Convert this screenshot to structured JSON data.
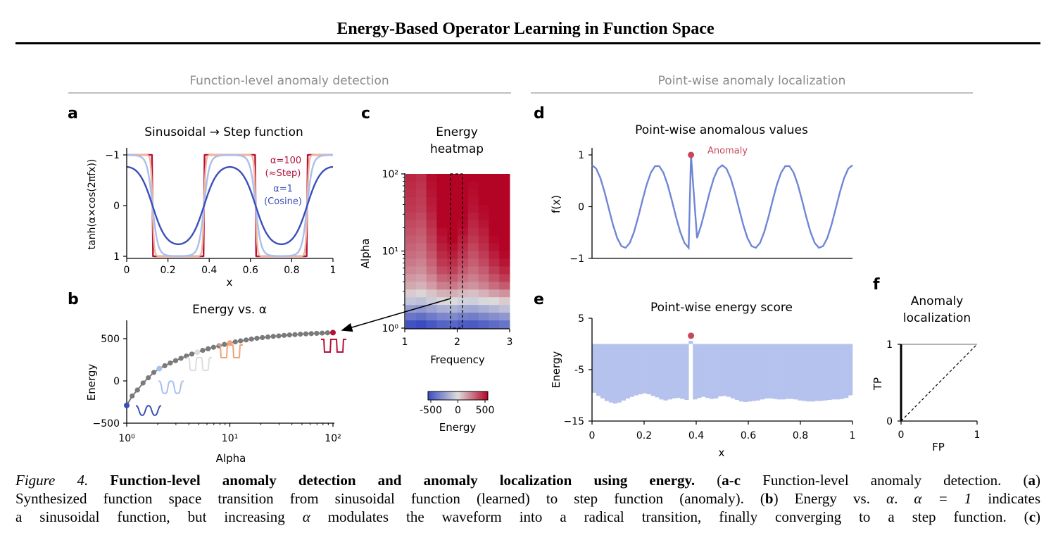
{
  "page": {
    "running_title": "Energy-Based Operator Learning in Function Space"
  },
  "figure": {
    "section_left": "Function-level anomaly detection",
    "section_right": "Point-wise anomaly localization",
    "panels": {
      "a": {
        "letter": "a",
        "title": "Sinusoidal → Step function",
        "xlabel": "x",
        "ylabel": "tanh(α×cos(2πfx))",
        "xticks": [
          "0",
          "0.2",
          "0.4",
          "0.6",
          "0.8",
          "1"
        ],
        "yticks": [
          "−1",
          "0",
          "1"
        ],
        "annotation_step_1": "α=100",
        "annotation_step_2": "(≈Step)",
        "annotation_cos_1": "α=1",
        "annotation_cos_2": "(Cosine)"
      },
      "b": {
        "letter": "b",
        "title": "Energy vs. α",
        "xlabel": "Alpha",
        "ylabel": "Energy",
        "xticks": [
          "10⁰",
          "10¹",
          "10²"
        ],
        "yticks": [
          "500",
          "0",
          "−500"
        ]
      },
      "c": {
        "letter": "c",
        "title_1": "Energy",
        "title_2": "heatmap",
        "xlabel": "Frequency",
        "ylabel": "Alpha",
        "xticks": [
          "1",
          "2",
          "3"
        ],
        "yticks": [
          "10²",
          "10¹",
          "10⁰"
        ],
        "colorbar_label": "Energy",
        "colorbar_ticks": [
          "-500",
          "0",
          "500"
        ]
      },
      "d": {
        "letter": "d",
        "title": "Point-wise anomalous values",
        "ylabel": "f(x)",
        "yticks": [
          "1",
          "0",
          "−1"
        ],
        "annotation": "Anomaly"
      },
      "e": {
        "letter": "e",
        "title": "Point-wise energy score",
        "xlabel": "x",
        "ylabel": "Energy",
        "xticks": [
          "0",
          "0.2",
          "0.4",
          "0.6",
          "0.8",
          "1"
        ],
        "yticks": [
          "5",
          "-5",
          "−15"
        ]
      },
      "f": {
        "letter": "f",
        "title_1": "Anomaly",
        "title_2": "localization",
        "xlabel": "FP",
        "ylabel": "TP",
        "xticks": [
          "0",
          "1"
        ],
        "yticks": [
          "1",
          "0"
        ]
      }
    }
  },
  "colors": {
    "blue_dark": "#3b4fb8",
    "blue_mid": "#6f86d6",
    "blue_light": "#a7c0ef",
    "red_dark": "#b4123a",
    "anomaly": "#c8485a",
    "bar": "#b6c2ee"
  },
  "chart_data": [
    {
      "panel": "a",
      "type": "line",
      "x_range": [
        0,
        1
      ],
      "ylim": [
        -1,
        1
      ],
      "function": "tanh(alpha*cos(2*pi*f*x))",
      "frequency": 2,
      "series": [
        {
          "name": "α=1",
          "alpha": 1,
          "color": "#3b4fb8"
        },
        {
          "alpha": 3,
          "color": "#a7c0ef"
        },
        {
          "alpha": 10,
          "color": "#f2b59c"
        },
        {
          "name": "α=100",
          "alpha": 100,
          "color": "#b4123a"
        }
      ]
    },
    {
      "panel": "b",
      "type": "scatter",
      "x_scale": "log",
      "xlim": [
        1,
        100
      ],
      "ylim": [
        -500,
        700
      ],
      "x": [
        1,
        1.13,
        1.27,
        1.44,
        1.62,
        1.83,
        2.07,
        2.34,
        2.64,
        2.98,
        3.36,
        3.79,
        4.28,
        4.83,
        5.46,
        6.16,
        6.95,
        7.85,
        8.86,
        10,
        11.3,
        12.7,
        14.4,
        16.2,
        18.3,
        20.7,
        23.4,
        26.4,
        29.8,
        33.6,
        37.9,
        42.8,
        48.3,
        54.6,
        61.6,
        69.5,
        78.5,
        88.6,
        100
      ],
      "y": [
        -290,
        -178,
        -108,
        -25,
        37,
        100,
        145,
        180,
        212,
        240,
        268,
        294,
        318,
        340,
        362,
        380,
        398,
        415,
        432,
        448,
        462,
        474,
        485,
        495,
        505,
        513,
        520,
        527,
        533,
        539,
        544,
        548,
        553,
        557,
        560,
        563,
        566,
        569,
        572
      ],
      "highlights": [
        {
          "x": 1,
          "color": "#3b4fb8"
        },
        {
          "x": 2.07,
          "color": "#a7c0ef"
        },
        {
          "x": 4.83,
          "color": "#dddddd"
        },
        {
          "x": 10,
          "color": "#f2a07a"
        },
        {
          "x": 100,
          "color": "#b4123a"
        }
      ]
    },
    {
      "panel": "c",
      "type": "heatmap",
      "x_range": [
        1,
        3
      ],
      "y_scale": "log",
      "y_range": [
        1,
        100
      ],
      "color_range": [
        -500,
        500
      ],
      "columns": 10,
      "rows": 20,
      "highlight_column": 5,
      "values_rows_top_to_bottom": [
        [
          420,
          400,
          480,
          560,
          600,
          560,
          500,
          520,
          580,
          600
        ],
        [
          410,
          390,
          470,
          560,
          600,
          560,
          490,
          520,
          580,
          600
        ],
        [
          400,
          380,
          460,
          550,
          590,
          550,
          480,
          510,
          570,
          590
        ],
        [
          390,
          370,
          450,
          540,
          580,
          540,
          470,
          500,
          560,
          590
        ],
        [
          380,
          360,
          440,
          530,
          570,
          530,
          460,
          490,
          550,
          580
        ],
        [
          360,
          340,
          420,
          520,
          560,
          510,
          440,
          480,
          540,
          570
        ],
        [
          340,
          320,
          400,
          500,
          540,
          490,
          420,
          460,
          530,
          560
        ],
        [
          320,
          300,
          380,
          480,
          520,
          470,
          400,
          440,
          510,
          550
        ],
        [
          300,
          280,
          360,
          460,
          500,
          440,
          380,
          420,
          490,
          530
        ],
        [
          280,
          260,
          340,
          440,
          470,
          410,
          350,
          400,
          470,
          510
        ],
        [
          260,
          240,
          310,
          410,
          440,
          380,
          320,
          370,
          440,
          490
        ],
        [
          230,
          210,
          280,
          380,
          400,
          340,
          290,
          340,
          410,
          460
        ],
        [
          200,
          180,
          250,
          340,
          360,
          300,
          260,
          300,
          370,
          420
        ],
        [
          160,
          140,
          200,
          280,
          300,
          250,
          220,
          260,
          320,
          370
        ],
        [
          120,
          100,
          150,
          220,
          230,
          190,
          170,
          210,
          260,
          300
        ],
        [
          40,
          20,
          60,
          100,
          110,
          80,
          70,
          100,
          140,
          170
        ],
        [
          -80,
          -100,
          -60,
          -20,
          -10,
          -40,
          -50,
          -20,
          10,
          40
        ],
        [
          -220,
          -240,
          -200,
          -160,
          -150,
          -180,
          -190,
          -160,
          -130,
          -100
        ],
        [
          -360,
          -380,
          -340,
          -300,
          -290,
          -320,
          -330,
          -300,
          -270,
          -240
        ],
        [
          -480,
          -500,
          -460,
          -420,
          -410,
          -440,
          -450,
          -420,
          -390,
          -360
        ]
      ]
    },
    {
      "panel": "d",
      "type": "line",
      "xlim": [
        0,
        1
      ],
      "ylim": [
        -1,
        1
      ],
      "function": "0.8*cos(2*pi*4*x)",
      "anomaly": {
        "x": 0.38,
        "y": 1
      }
    },
    {
      "panel": "e",
      "type": "bar",
      "xlim": [
        0,
        1
      ],
      "ylim": [
        -15,
        5
      ],
      "anomaly": {
        "x": 0.38,
        "y": 1.6
      },
      "values": [
        -9.5,
        -10.1,
        -10.6,
        -11.1,
        -11.4,
        -11.6,
        -11.4,
        -11.0,
        -10.6,
        -10.3,
        -10.0,
        -9.8,
        -9.6,
        -9.8,
        -10.1,
        -10.4,
        -10.8,
        -11.0,
        -10.8,
        -10.6,
        -10.5,
        -10.7,
        -10.9,
        0.6,
        -10.8,
        -10.5,
        -10.3,
        -10.5,
        -10.7,
        -10.6,
        -10.2,
        -10.1,
        -10.3,
        -10.6,
        -10.9,
        -11.2,
        -11.3,
        -11.2,
        -11.1,
        -11.0,
        -10.8,
        -10.6,
        -10.6,
        -10.7,
        -10.8,
        -10.8,
        -10.7,
        -10.7,
        -10.8,
        -11.0,
        -11.1,
        -11.2,
        -11.2,
        -11.1,
        -11.1,
        -11.0,
        -10.9,
        -10.8,
        -10.8,
        -10.7,
        -10.5,
        -10.0
      ]
    },
    {
      "panel": "f",
      "type": "line",
      "xlim": [
        0,
        1
      ],
      "ylim": [
        0,
        1
      ],
      "series": [
        {
          "x": [
            0,
            0,
            1
          ],
          "y": [
            0,
            1,
            1
          ],
          "style": "solid"
        },
        {
          "x": [
            0,
            1
          ],
          "y": [
            0,
            1
          ],
          "style": "dashed"
        }
      ]
    }
  ],
  "caption": {
    "fig_label": "Figure 4.",
    "bold_title": "Function-level anomaly detection and anomaly localization using energy.",
    "l1_text": " Function-level anomaly detection. (",
    "l1_ref_open": " (",
    "l1_bold_ac": "a-c",
    "l1_close": ")",
    "l1_bold_a": "a",
    "l2_text": "Synthesized function space transition from sinusoidal function (learned) to step function (anomaly). (",
    "l2_bold_b": "b",
    "l2_text2": ") Energy vs. ",
    "l2_alpha": "α",
    "l2_text3": ". ",
    "l2_alpha_eq": "α = 1",
    "l2_text4": " indicates",
    "l3_text": "a sinusoidal function, but increasing ",
    "l3_alpha": "α",
    "l3_text2": " modulates the waveform into a radical transition, finally converging to a step function. (",
    "l3_bold_c": "c",
    "l3_close": ")"
  }
}
